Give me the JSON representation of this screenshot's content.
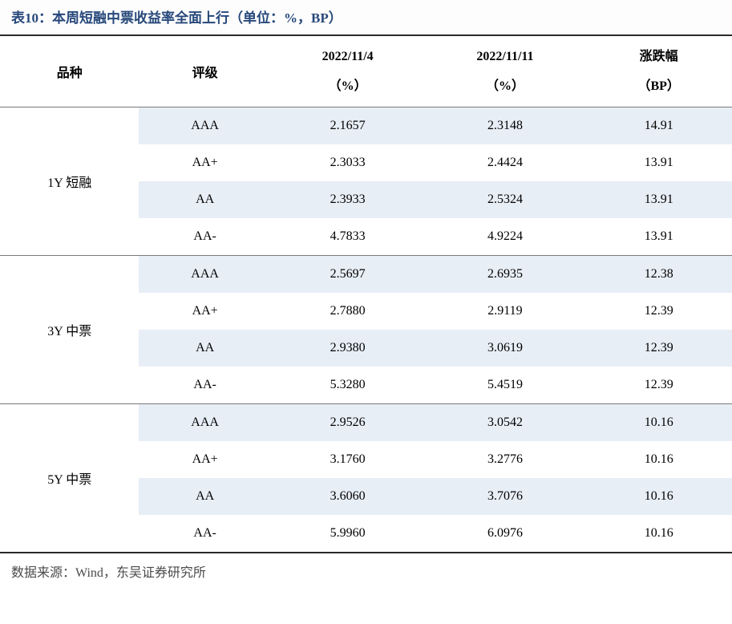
{
  "title": "表10：本周短融中票收益率全面上行（单位：%，BP）",
  "colors": {
    "title_text": "#27487a",
    "header_border": "#2a2a2a",
    "row_alt_bg": "#e8eef6",
    "group_border": "#7a7a7a",
    "source_text": "#4a4a4a",
    "background": "#ffffff"
  },
  "columns": [
    {
      "label": "品种",
      "sub": ""
    },
    {
      "label": "评级",
      "sub": ""
    },
    {
      "label": "2022/11/4",
      "sub": "（%）"
    },
    {
      "label": "2022/11/11",
      "sub": "（%）"
    },
    {
      "label": "涨跌幅",
      "sub": "（BP）"
    }
  ],
  "groups": [
    {
      "category": "1Y 短融",
      "rows": [
        {
          "rating": "AAA",
          "v1": "2.1657",
          "v2": "2.3148",
          "chg": "14.91"
        },
        {
          "rating": "AA+",
          "v1": "2.3033",
          "v2": "2.4424",
          "chg": "13.91"
        },
        {
          "rating": "AA",
          "v1": "2.3933",
          "v2": "2.5324",
          "chg": "13.91"
        },
        {
          "rating": "AA-",
          "v1": "4.7833",
          "v2": "4.9224",
          "chg": "13.91"
        }
      ]
    },
    {
      "category": "3Y 中票",
      "rows": [
        {
          "rating": "AAA",
          "v1": "2.5697",
          "v2": "2.6935",
          "chg": "12.38"
        },
        {
          "rating": "AA+",
          "v1": "2.7880",
          "v2": "2.9119",
          "chg": "12.39"
        },
        {
          "rating": "AA",
          "v1": "2.9380",
          "v2": "3.0619",
          "chg": "12.39"
        },
        {
          "rating": "AA-",
          "v1": "5.3280",
          "v2": "5.4519",
          "chg": "12.39"
        }
      ]
    },
    {
      "category": "5Y 中票",
      "rows": [
        {
          "rating": "AAA",
          "v1": "2.9526",
          "v2": "3.0542",
          "chg": "10.16"
        },
        {
          "rating": "AA+",
          "v1": "3.1760",
          "v2": "3.2776",
          "chg": "10.16"
        },
        {
          "rating": "AA",
          "v1": "3.6060",
          "v2": "3.7076",
          "chg": "10.16"
        },
        {
          "rating": "AA-",
          "v1": "5.9960",
          "v2": "6.0976",
          "chg": "10.16"
        }
      ]
    }
  ],
  "source": "数据来源：Wind，东吴证券研究所",
  "col_widths": [
    "19%",
    "18%",
    "21%",
    "22%",
    "20%"
  ]
}
